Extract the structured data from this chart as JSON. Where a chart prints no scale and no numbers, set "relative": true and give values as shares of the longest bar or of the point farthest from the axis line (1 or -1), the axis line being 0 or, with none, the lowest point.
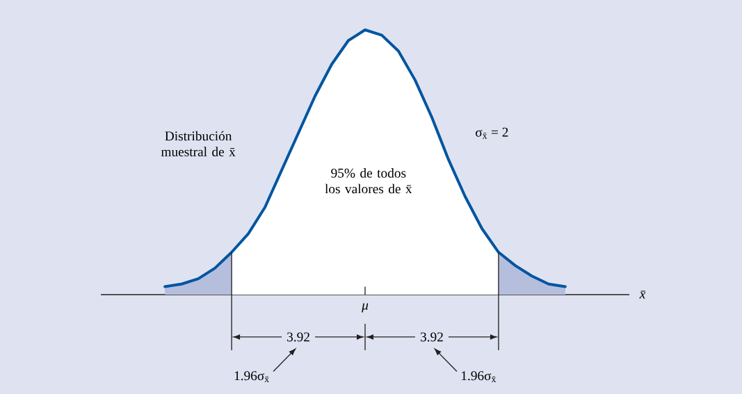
{
  "chart_data": {
    "type": "line",
    "relative": true,
    "xlabel": "x̄",
    "categories": [
      null,
      null,
      null,
      null,
      null,
      null,
      null,
      null,
      null,
      null,
      null,
      null,
      null,
      null,
      null,
      null,
      null,
      null,
      null,
      null,
      null,
      null,
      null,
      null,
      null
    ],
    "series": [
      {
        "type": "area",
        "color": "#b6bedd",
        "values": [
          0.03,
          0.04,
          0.06,
          0.1,
          0.16,
          null,
          null,
          null,
          null,
          null,
          null,
          null,
          null,
          null,
          null,
          null,
          null,
          null,
          null,
          null,
          null,
          null,
          null,
          null,
          null
        ]
      },
      {
        "type": "area",
        "color": "#ffffff",
        "values": [
          null,
          null,
          null,
          null,
          0.16,
          0.23,
          0.33,
          0.47,
          0.61,
          0.75,
          0.87,
          0.96,
          1,
          0.98,
          0.92,
          0.81,
          0.67,
          0.51,
          0.37,
          0.25,
          0.16,
          null,
          null,
          null,
          null
        ]
      },
      {
        "type": "area",
        "color": "#b6bedd",
        "values": [
          null,
          null,
          null,
          null,
          null,
          null,
          null,
          null,
          null,
          null,
          null,
          null,
          null,
          null,
          null,
          null,
          null,
          null,
          null,
          null,
          0.16,
          0.11,
          0.07,
          0.04,
          0.03
        ]
      },
      {
        "color": "#0055a0",
        "values": [
          0.03,
          0.04,
          0.06,
          0.1,
          0.16,
          0.23,
          0.33,
          0.47,
          0.61,
          0.75,
          0.87,
          0.96,
          1,
          0.98,
          0.92,
          0.81,
          0.67,
          0.51,
          0.37,
          0.25,
          0.16,
          0.11,
          0.07,
          0.04,
          0.03
        ]
      }
    ],
    "annotations": [
      "Distribución muestral de x̄",
      "95% de todos los valores de x̄",
      "σ$_{x̄}$ = 2",
      "3.92",
      "3.92",
      "1.96σ$_{x̄}$",
      "1.96σ$_{x̄}$",
      "μ"
    ]
  }
}
